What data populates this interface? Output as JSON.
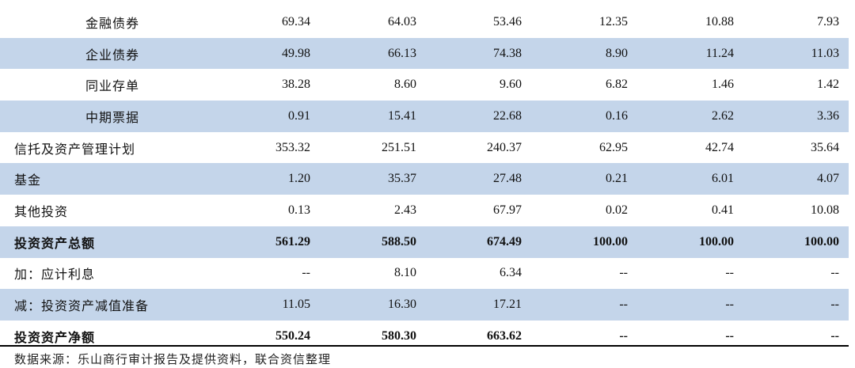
{
  "rows": [
    {
      "label": "金融债券",
      "indent": true,
      "shaded": false,
      "bold": false,
      "values": [
        "69.34",
        "64.03",
        "53.46",
        "12.35",
        "10.88",
        "7.93"
      ]
    },
    {
      "label": "企业债券",
      "indent": true,
      "shaded": true,
      "bold": false,
      "values": [
        "49.98",
        "66.13",
        "74.38",
        "8.90",
        "11.24",
        "11.03"
      ]
    },
    {
      "label": "同业存单",
      "indent": true,
      "shaded": false,
      "bold": false,
      "values": [
        "38.28",
        "8.60",
        "9.60",
        "6.82",
        "1.46",
        "1.42"
      ]
    },
    {
      "label": "中期票据",
      "indent": true,
      "shaded": true,
      "bold": false,
      "values": [
        "0.91",
        "15.41",
        "22.68",
        "0.16",
        "2.62",
        "3.36"
      ]
    },
    {
      "label": "信托及资产管理计划",
      "indent": false,
      "shaded": false,
      "bold": false,
      "values": [
        "353.32",
        "251.51",
        "240.37",
        "62.95",
        "42.74",
        "35.64"
      ]
    },
    {
      "label": "基金",
      "indent": false,
      "shaded": true,
      "bold": false,
      "values": [
        "1.20",
        "35.37",
        "27.48",
        "0.21",
        "6.01",
        "4.07"
      ]
    },
    {
      "label": "其他投资",
      "indent": false,
      "shaded": false,
      "bold": false,
      "values": [
        "0.13",
        "2.43",
        "67.97",
        "0.02",
        "0.41",
        "10.08"
      ]
    },
    {
      "label": "投资资产总额",
      "indent": false,
      "shaded": true,
      "bold": true,
      "values": [
        "561.29",
        "588.50",
        "674.49",
        "100.00",
        "100.00",
        "100.00"
      ]
    },
    {
      "label": "加：应计利息",
      "indent": false,
      "shaded": false,
      "bold": false,
      "values": [
        "--",
        "8.10",
        "6.34",
        "--",
        "--",
        "--"
      ]
    },
    {
      "label": "减：投资资产减值准备",
      "indent": false,
      "shaded": true,
      "bold": false,
      "values": [
        "11.05",
        "16.30",
        "17.21",
        "--",
        "--",
        "--"
      ]
    },
    {
      "label": "投资资产净额",
      "indent": false,
      "shaded": false,
      "bold": true,
      "values": [
        "550.24",
        "580.30",
        "663.62",
        "--",
        "--",
        "--"
      ]
    }
  ],
  "source_note": "数据来源：乐山商行审计报告及提供资料，联合资信整理"
}
